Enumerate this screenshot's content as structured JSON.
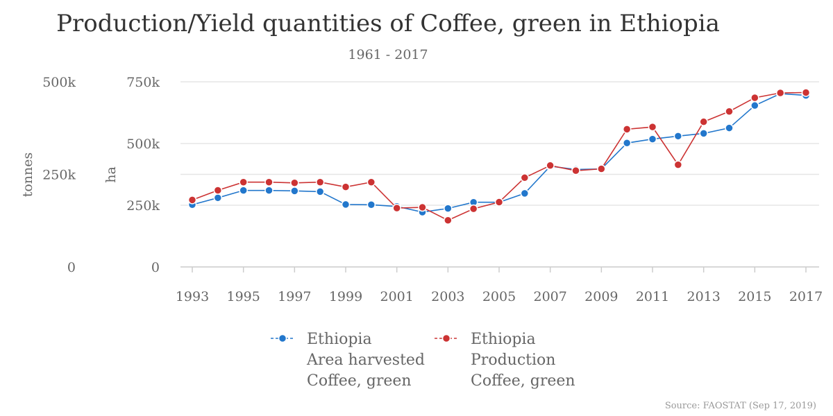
{
  "title": "Production/Yield quantities of Coffee, green in Ethiopia",
  "subtitle": "1961 - 2017",
  "source": "Source: FAOSTAT (Sep 17, 2019)",
  "colors": {
    "area": "#2277cc",
    "production": "#cc3333",
    "grid": "#e6e6e6",
    "text": "#666666"
  },
  "chart_data": {
    "type": "line",
    "x": [
      1993,
      1994,
      1995,
      1996,
      1997,
      1998,
      1999,
      2000,
      2001,
      2002,
      2003,
      2004,
      2005,
      2006,
      2007,
      2008,
      2009,
      2010,
      2011,
      2012,
      2013,
      2014,
      2015,
      2016,
      2017
    ],
    "x_ticks": [
      "1993",
      "1995",
      "1997",
      "1999",
      "2001",
      "2003",
      "2005",
      "2007",
      "2009",
      "2011",
      "2013",
      "2015",
      "2017"
    ],
    "left_axis": {
      "title": "tonnes",
      "range": [
        0,
        500000
      ],
      "ticks": [
        "0",
        "250k",
        "500k"
      ]
    },
    "right_axis": {
      "title": "ha",
      "range": [
        0,
        750000
      ],
      "ticks": [
        "0",
        "250k",
        "500k",
        "750k"
      ]
    },
    "gridlines_ha": [
      0,
      250000,
      375000,
      500000,
      750000
    ],
    "series": [
      {
        "key": "area",
        "legend": [
          "Ethiopia",
          "Area harvested",
          "Coffee, green"
        ],
        "axis": "right",
        "values": [
          252000,
          280000,
          310000,
          310000,
          308000,
          305000,
          253000,
          252000,
          245000,
          222000,
          237000,
          262000,
          262000,
          298000,
          408000,
          395000,
          397000,
          502000,
          518000,
          530000,
          541000,
          563000,
          654000,
          702000,
          695000
        ]
      },
      {
        "key": "production",
        "legend": [
          "Ethiopia",
          "Production",
          "Coffee, green"
        ],
        "axis": "left",
        "values": [
          181000,
          207000,
          229000,
          229000,
          227000,
          229000,
          216000,
          229000,
          159000,
          161000,
          126000,
          157000,
          175000,
          241000,
          274000,
          260000,
          265000,
          372000,
          378000,
          276000,
          392000,
          420000,
          457000,
          470000,
          471000
        ]
      }
    ],
    "legend_position": "bottom"
  }
}
